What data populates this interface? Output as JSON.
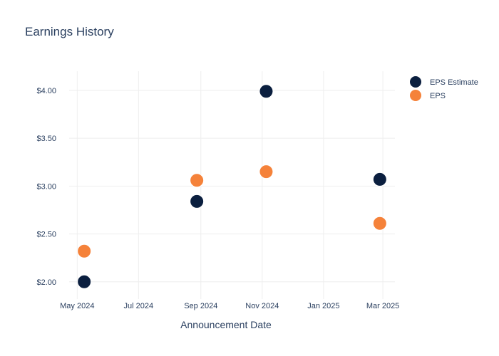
{
  "chart_data": {
    "type": "scatter",
    "title": "Earnings History",
    "xlabel": "Announcement Date",
    "ylabel": "",
    "x_ticks": [
      "May 2024",
      "Jul 2024",
      "Sep 2024",
      "Nov 2024",
      "Jan 2025",
      "Mar 2025"
    ],
    "y_ticks": [
      "$2.00",
      "$2.50",
      "$3.00",
      "$3.50",
      "$4.00"
    ],
    "ylim": [
      1.82,
      4.2
    ],
    "xlim": [
      "2024-04-23",
      "2025-03-13"
    ],
    "grid": true,
    "legend_position": "top-right",
    "series": [
      {
        "name": "EPS Estimate",
        "color": "#0b1f3f",
        "points": [
          {
            "x": "2024-05-08",
            "y": 2.0
          },
          {
            "x": "2024-08-28",
            "y": 2.84
          },
          {
            "x": "2024-11-05",
            "y": 3.99
          },
          {
            "x": "2025-02-26",
            "y": 3.07
          }
        ]
      },
      {
        "name": "EPS",
        "color": "#f5823a",
        "points": [
          {
            "x": "2024-05-08",
            "y": 2.32
          },
          {
            "x": "2024-08-28",
            "y": 3.06
          },
          {
            "x": "2024-11-05",
            "y": 3.15
          },
          {
            "x": "2025-02-26",
            "y": 2.61
          }
        ]
      }
    ]
  }
}
